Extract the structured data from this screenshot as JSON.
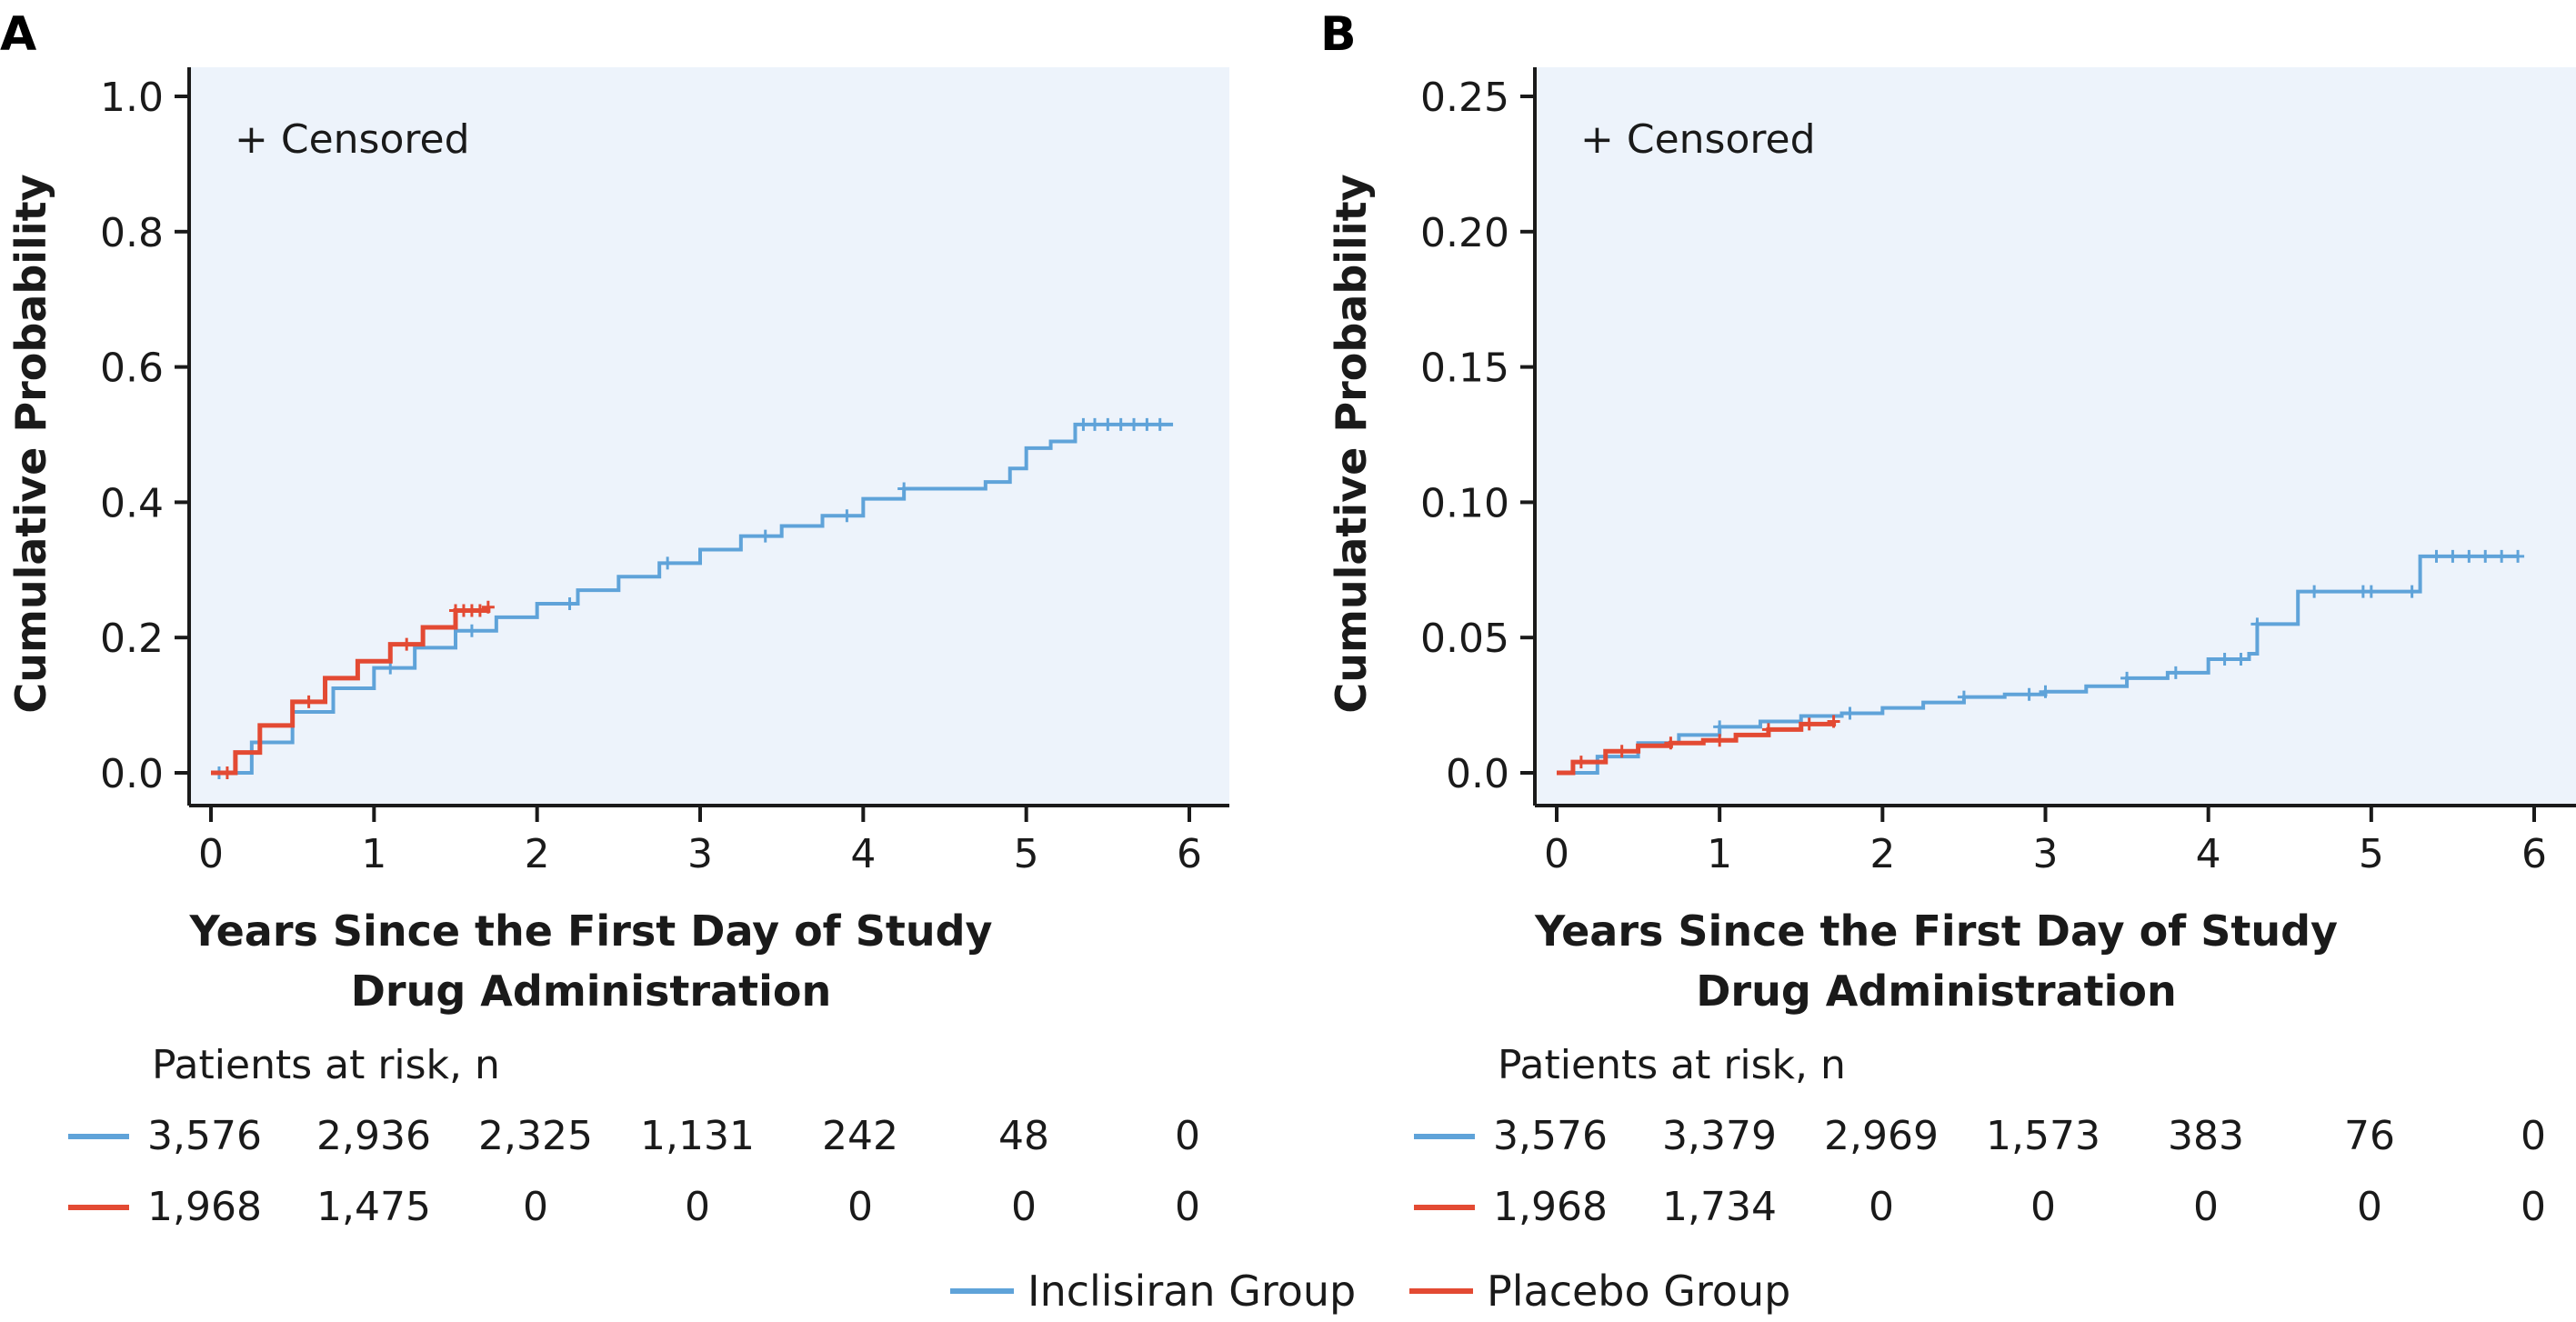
{
  "colors": {
    "inclisiran": "#5fa3d9",
    "placebo": "#e34a33",
    "plot_background": "#edf3fb",
    "axis": "#1a1a1a"
  },
  "legend": {
    "items": [
      {
        "label": "Inclisiran Group",
        "color": "#5fa3d9"
      },
      {
        "label": "Placebo Group",
        "color": "#e34a33"
      }
    ]
  },
  "chart_data": [
    {
      "panel": "A",
      "type": "line",
      "subtype": "kaplan-meier cumulative incidence",
      "annotation": "+ Censored",
      "xlabel_lines": [
        "Years Since the First Day of Study",
        "Drug Administration"
      ],
      "ylabel": "Cumulative Probability",
      "xlim": [
        0,
        6
      ],
      "ylim": [
        0,
        1.0
      ],
      "x_ticks": [
        0,
        1,
        2,
        3,
        4,
        5,
        6
      ],
      "x_tick_labels": [
        "0",
        "1",
        "2",
        "3",
        "4",
        "5",
        "6"
      ],
      "y_ticks": [
        0,
        0.2,
        0.4,
        0.6,
        0.8,
        1.0
      ],
      "y_tick_labels": [
        "0.0",
        "0.2",
        "0.4",
        "0.6",
        "0.8",
        "1.0"
      ],
      "series": [
        {
          "name": "Inclisiran Group",
          "color": "#5fa3d9",
          "x": [
            0,
            0.25,
            0.5,
            0.75,
            1.0,
            1.25,
            1.5,
            1.75,
            2.0,
            2.25,
            2.5,
            2.75,
            3.0,
            3.25,
            3.5,
            3.75,
            4.0,
            4.25,
            4.5,
            4.75,
            4.9,
            5.0,
            5.15,
            5.3,
            5.5,
            5.7,
            5.9
          ],
          "y": [
            0,
            0.045,
            0.09,
            0.125,
            0.155,
            0.185,
            0.21,
            0.23,
            0.25,
            0.27,
            0.29,
            0.31,
            0.33,
            0.35,
            0.365,
            0.38,
            0.405,
            0.42,
            0.42,
            0.43,
            0.45,
            0.48,
            0.49,
            0.515,
            0.515,
            0.515,
            0.515
          ],
          "censor_x": [
            0.05,
            1.1,
            1.6,
            2.2,
            2.8,
            3.4,
            3.9,
            4.25,
            5.35,
            5.42,
            5.5,
            5.58,
            5.66,
            5.74,
            5.82
          ]
        },
        {
          "name": "Placebo Group",
          "color": "#e34a33",
          "x": [
            0,
            0.15,
            0.3,
            0.5,
            0.7,
            0.9,
            1.1,
            1.3,
            1.5,
            1.7
          ],
          "y": [
            0,
            0.03,
            0.07,
            0.105,
            0.14,
            0.165,
            0.19,
            0.215,
            0.24,
            0.245
          ],
          "censor_x": [
            0.1,
            0.6,
            1.2,
            1.5,
            1.55,
            1.6,
            1.65,
            1.7
          ]
        }
      ],
      "risk_table": {
        "title": "Patients at risk, n",
        "rows": [
          {
            "color": "#5fa3d9",
            "values": [
              "3,576",
              "2,936",
              "2,325",
              "1,131",
              "242",
              "48",
              "0"
            ]
          },
          {
            "color": "#e34a33",
            "values": [
              "1,968",
              "1,475",
              "0",
              "0",
              "0",
              "0",
              "0"
            ]
          }
        ]
      }
    },
    {
      "panel": "B",
      "type": "line",
      "subtype": "kaplan-meier cumulative incidence",
      "annotation": "+ Censored",
      "xlabel_lines": [
        "Years Since the First Day of Study",
        "Drug Administration"
      ],
      "ylabel": "Cumulative Probability",
      "xlim": [
        0,
        6
      ],
      "ylim": [
        0,
        0.25
      ],
      "x_ticks": [
        0,
        1,
        2,
        3,
        4,
        5,
        6
      ],
      "x_tick_labels": [
        "0",
        "1",
        "2",
        "3",
        "4",
        "5",
        "6"
      ],
      "y_ticks": [
        0,
        0.05,
        0.1,
        0.15,
        0.2,
        0.25
      ],
      "y_tick_labels": [
        "0.0",
        "0.05",
        "0.10",
        "0.15",
        "0.20",
        "0.25"
      ],
      "series": [
        {
          "name": "Inclisiran Group",
          "color": "#5fa3d9",
          "x": [
            0,
            0.25,
            0.5,
            0.75,
            1.0,
            1.25,
            1.5,
            1.75,
            2.0,
            2.25,
            2.5,
            2.75,
            3.0,
            3.25,
            3.5,
            3.75,
            4.0,
            4.25,
            4.3,
            4.55,
            5.0,
            5.3,
            5.55,
            5.9
          ],
          "y": [
            0,
            0.006,
            0.011,
            0.014,
            0.017,
            0.019,
            0.021,
            0.022,
            0.024,
            0.026,
            0.028,
            0.029,
            0.03,
            0.032,
            0.035,
            0.037,
            0.042,
            0.044,
            0.055,
            0.067,
            0.067,
            0.08,
            0.08,
            0.08
          ],
          "censor_x": [
            0.3,
            1.0,
            1.8,
            2.5,
            2.9,
            3.0,
            3.5,
            3.8,
            4.1,
            4.2,
            4.3,
            4.65,
            4.95,
            5.0,
            5.25,
            5.4,
            5.5,
            5.6,
            5.7,
            5.8,
            5.9
          ]
        },
        {
          "name": "Placebo Group",
          "color": "#e34a33",
          "x": [
            0,
            0.1,
            0.3,
            0.5,
            0.7,
            0.9,
            1.1,
            1.3,
            1.5,
            1.7
          ],
          "y": [
            0,
            0.004,
            0.008,
            0.01,
            0.011,
            0.012,
            0.014,
            0.016,
            0.018,
            0.019
          ],
          "censor_x": [
            0.15,
            0.4,
            0.7,
            1.0,
            1.3,
            1.55,
            1.7
          ]
        }
      ],
      "risk_table": {
        "title": "Patients at risk, n",
        "rows": [
          {
            "color": "#5fa3d9",
            "values": [
              "3,576",
              "3,379",
              "2,969",
              "1,573",
              "383",
              "76",
              "0"
            ]
          },
          {
            "color": "#e34a33",
            "values": [
              "1,968",
              "1,734",
              "0",
              "0",
              "0",
              "0",
              "0"
            ]
          }
        ]
      }
    }
  ]
}
